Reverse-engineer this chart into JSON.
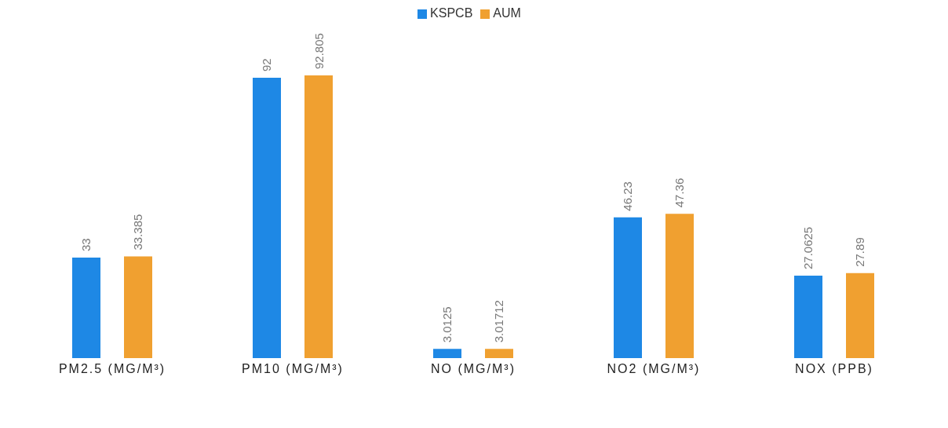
{
  "chart_data": {
    "type": "bar",
    "categories": [
      "PM2.5 (MG/M³)",
      "PM10 (MG/M³)",
      "NO (MG/M³)",
      "NO2 (MG/M³)",
      "NOX (PPB)"
    ],
    "series": [
      {
        "name": "KSPCB",
        "color": "#1e88e5",
        "values": [
          33,
          92,
          3.0125,
          46.23,
          27.0625
        ]
      },
      {
        "name": "AUM",
        "color": "#f0a030",
        "values": [
          33.385,
          92.805,
          3.01712,
          47.36,
          27.89
        ]
      }
    ],
    "data_labels": true,
    "legend": "top",
    "grid": false
  }
}
